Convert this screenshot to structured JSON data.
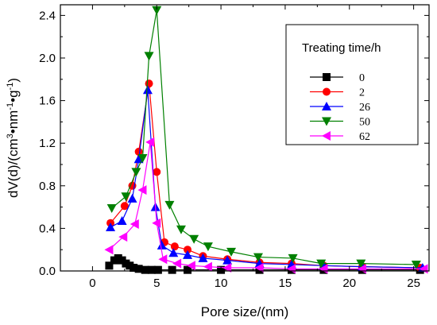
{
  "chart_data": {
    "type": "line",
    "xlabel": "Pore size/(nm)",
    "ylabel_parts": {
      "prefix": "dV(d)/(cm",
      "sup1": "3",
      "mid1": "•nm",
      "sup2": "-1",
      "mid2": "•g",
      "sup3": "-1",
      "suffix": ")"
    },
    "xlim": [
      -2.5,
      26.2
    ],
    "ylim": [
      0,
      2.5
    ],
    "xticks": [
      "0",
      "5",
      "10",
      "15",
      "20",
      "25"
    ],
    "xtick_values": [
      0,
      5,
      10,
      15,
      20,
      25
    ],
    "yticks": [
      "0.0",
      "0.4",
      "0.8",
      "1.2",
      "1.6",
      "2.0",
      "2.4"
    ],
    "ytick_values": [
      0.0,
      0.4,
      0.8,
      1.2,
      1.6,
      2.0,
      2.4
    ],
    "grid": false,
    "legend": {
      "title": "Treating time/h",
      "placement": "top-right"
    },
    "series": [
      {
        "name": "0",
        "color": "#000000",
        "marker": "square",
        "x": [
          1.3,
          1.7,
          2.0,
          2.3,
          2.6,
          2.9,
          3.2,
          3.6,
          4.1,
          4.6,
          5.1,
          6.2,
          7.4,
          10,
          13,
          15.5,
          18,
          21,
          25.5
        ],
        "y": [
          0.05,
          0.1,
          0.12,
          0.1,
          0.07,
          0.05,
          0.03,
          0.02,
          0.01,
          0.01,
          0.01,
          0.01,
          0.01,
          0.01,
          0.01,
          0.01,
          0.01,
          0.01,
          0.01
        ]
      },
      {
        "name": "2",
        "color": "#ff0000",
        "marker": "circle",
        "x": [
          1.4,
          2.5,
          3.1,
          3.6,
          4.4,
          5.0,
          5.6,
          6.4,
          7.4,
          8.6,
          10.5,
          13,
          15.5,
          18,
          21,
          25.5
        ],
        "y": [
          0.45,
          0.61,
          0.8,
          1.12,
          1.76,
          0.93,
          0.27,
          0.23,
          0.2,
          0.14,
          0.11,
          0.08,
          0.07,
          0.05,
          0.04,
          0.03
        ]
      },
      {
        "name": "26",
        "color": "#0000ff",
        "marker": "triangle-up",
        "x": [
          1.4,
          2.3,
          3.1,
          3.6,
          4.3,
          4.9,
          5.4,
          6.3,
          7.4,
          8.6,
          10.5,
          13,
          15.5,
          18,
          21,
          25.7
        ],
        "y": [
          0.41,
          0.47,
          0.68,
          1.05,
          1.7,
          0.6,
          0.24,
          0.17,
          0.15,
          0.12,
          0.1,
          0.07,
          0.06,
          0.05,
          0.04,
          0.03
        ]
      },
      {
        "name": "50",
        "color": "#008000",
        "marker": "triangle-down",
        "x": [
          1.5,
          2.6,
          3.4,
          3.9,
          4.4,
          5.0,
          6.0,
          6.9,
          7.9,
          9.0,
          10.8,
          12.9,
          15.6,
          17.8,
          20.9,
          25.2
        ],
        "y": [
          0.59,
          0.7,
          0.93,
          1.06,
          2.02,
          2.45,
          0.62,
          0.39,
          0.3,
          0.23,
          0.18,
          0.13,
          0.12,
          0.07,
          0.07,
          0.06
        ]
      },
      {
        "name": "62",
        "color": "#ff00ff",
        "marker": "triangle-left",
        "x": [
          1.3,
          2.4,
          3.3,
          3.9,
          4.5,
          5.0,
          5.5,
          6.6,
          7.7,
          9.0,
          10.5,
          13,
          15.5,
          18,
          21,
          25.8
        ],
        "y": [
          0.2,
          0.32,
          0.44,
          0.76,
          1.21,
          0.45,
          0.11,
          0.07,
          0.05,
          0.04,
          0.03,
          0.03,
          0.02,
          0.02,
          0.02,
          0.02
        ]
      }
    ]
  }
}
